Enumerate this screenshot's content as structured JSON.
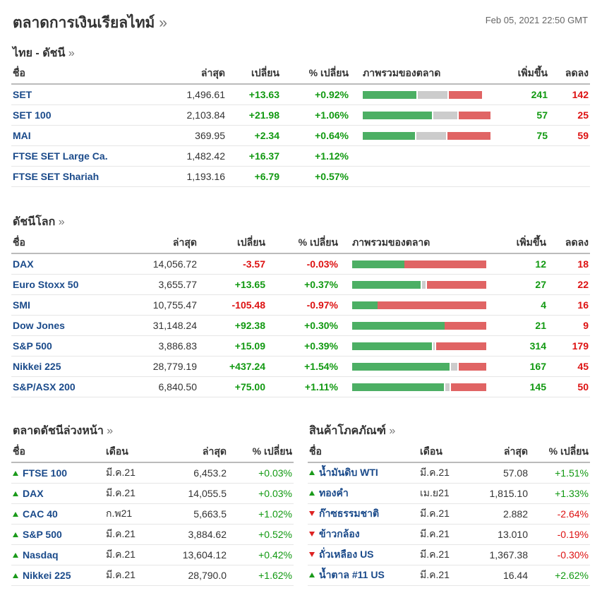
{
  "header": {
    "title": "ตลาดการเงินเรียลไทม์",
    "raquo": "»",
    "timestamp": "Feb 05, 2021 22:50 GMT"
  },
  "thai": {
    "title": "ไทย - ดัชนี",
    "raquo": "»",
    "cols": [
      "ชื่อ",
      "ล่าสุด",
      "เปลี่ยน",
      "% เปลี่ยน",
      "ภาพรวมของตลาด",
      "เพิ่มขึ้น",
      "ลดลง"
    ],
    "rows": [
      {
        "name": "SET",
        "last": "1,496.61",
        "chg": "+13.63",
        "pct": "+0.92%",
        "up": "241",
        "down": "142",
        "bar": [
          0.42,
          0.23,
          0.26
        ]
      },
      {
        "name": "SET 100",
        "last": "2,103.84",
        "chg": "+21.98",
        "pct": "+1.06%",
        "up": "57",
        "down": "25",
        "bar": [
          0.54,
          0.19,
          0.25
        ]
      },
      {
        "name": "MAI",
        "last": "369.95",
        "chg": "+2.34",
        "pct": "+0.64%",
        "up": "75",
        "down": "59",
        "bar": [
          0.41,
          0.23,
          0.34
        ]
      },
      {
        "name": "FTSE SET Large Ca.",
        "last": "1,482.42",
        "chg": "+16.37",
        "pct": "+1.12%",
        "up": "",
        "down": "",
        "bar": null
      },
      {
        "name": "FTSE SET Shariah",
        "last": "1,193.16",
        "chg": "+6.79",
        "pct": "+0.57%",
        "up": "",
        "down": "",
        "bar": null
      }
    ]
  },
  "world": {
    "title": "ดัชนีโลก",
    "raquo": "»",
    "cols": [
      "ชื่อ",
      "ล่าสุด",
      "เปลี่ยน",
      "% เปลี่ยน",
      "ภาพรวมของตลาด",
      "เพิ่มขึ้น",
      "ลดลง"
    ],
    "rows": [
      {
        "name": "DAX",
        "last": "14,056.72",
        "chg": "-3.57",
        "pct": "-0.03%",
        "up": "12",
        "down": "18",
        "bar": [
          0.39,
          0.0,
          0.61
        ]
      },
      {
        "name": "Euro Stoxx 50",
        "last": "3,655.77",
        "chg": "+13.65",
        "pct": "+0.37%",
        "up": "27",
        "down": "22",
        "bar": [
          0.52,
          0.03,
          0.45
        ]
      },
      {
        "name": "SMI",
        "last": "10,755.47",
        "chg": "-105.48",
        "pct": "-0.97%",
        "up": "4",
        "down": "16",
        "bar": [
          0.19,
          0.0,
          0.81
        ]
      },
      {
        "name": "Dow Jones",
        "last": "31,148.24",
        "chg": "+92.38",
        "pct": "+0.30%",
        "up": "21",
        "down": "9",
        "bar": [
          0.69,
          0.0,
          0.31
        ]
      },
      {
        "name": "S&P 500",
        "last": "3,886.83",
        "chg": "+15.09",
        "pct": "+0.39%",
        "up": "314",
        "down": "179",
        "bar": [
          0.61,
          0.01,
          0.38
        ]
      },
      {
        "name": "Nikkei 225",
        "last": "28,779.19",
        "chg": "+437.24",
        "pct": "+1.54%",
        "up": "167",
        "down": "45",
        "bar": [
          0.74,
          0.05,
          0.21
        ]
      },
      {
        "name": "S&P/ASX 200",
        "last": "6,840.50",
        "chg": "+75.00",
        "pct": "+1.11%",
        "up": "145",
        "down": "50",
        "bar": [
          0.7,
          0.03,
          0.27
        ]
      }
    ]
  },
  "futures": {
    "title": "ตลาดดัชนีล่วงหน้า",
    "raquo": "»",
    "cols": [
      "ชื่อ",
      "เดือน",
      "ล่าสุด",
      "% เปลี่ยน"
    ],
    "rows": [
      {
        "name": "FTSE 100",
        "month": "มี.ค.21",
        "last": "6,453.2",
        "pct": "+0.03%",
        "dir": "up"
      },
      {
        "name": "DAX",
        "month": "มี.ค.21",
        "last": "14,055.5",
        "pct": "+0.03%",
        "dir": "up"
      },
      {
        "name": "CAC 40",
        "month": "ก.พ21",
        "last": "5,663.5",
        "pct": "+1.02%",
        "dir": "up"
      },
      {
        "name": "S&P 500",
        "month": "มี.ค.21",
        "last": "3,884.62",
        "pct": "+0.52%",
        "dir": "up"
      },
      {
        "name": "Nasdaq",
        "month": "มี.ค.21",
        "last": "13,604.12",
        "pct": "+0.42%",
        "dir": "up"
      },
      {
        "name": "Nikkei 225",
        "month": "มี.ค.21",
        "last": "28,790.0",
        "pct": "+1.62%",
        "dir": "up"
      }
    ]
  },
  "commodities": {
    "title": "สินค้าโภคภัณฑ์",
    "raquo": "»",
    "cols": [
      "ชื่อ",
      "เดือน",
      "ล่าสุด",
      "% เปลี่ยน"
    ],
    "rows": [
      {
        "name": "น้ำมันดิบ WTI",
        "month": "มี.ค.21",
        "last": "57.08",
        "pct": "+1.51%",
        "dir": "up"
      },
      {
        "name": "ทองคำ",
        "month": "เม.ย21",
        "last": "1,815.10",
        "pct": "+1.33%",
        "dir": "up"
      },
      {
        "name": "ก๊าซธรรมชาติ",
        "month": "มี.ค.21",
        "last": "2.882",
        "pct": "-2.64%",
        "dir": "down"
      },
      {
        "name": "ข้าวกล้อง",
        "month": "มี.ค.21",
        "last": "13.010",
        "pct": "-0.19%",
        "dir": "down"
      },
      {
        "name": "ถั่วเหลือง US",
        "month": "มี.ค.21",
        "last": "1,367.38",
        "pct": "-0.30%",
        "dir": "down"
      },
      {
        "name": "น้ำตาล #11 US",
        "month": "มี.ค.21",
        "last": "16.44",
        "pct": "+2.62%",
        "dir": "up"
      }
    ]
  },
  "colors": {
    "up": "#119911",
    "down": "#dd1111",
    "link": "#1a4a8a",
    "bar_up": "#4caf64",
    "bar_flat": "#cccccc",
    "bar_down": "#e06464"
  }
}
